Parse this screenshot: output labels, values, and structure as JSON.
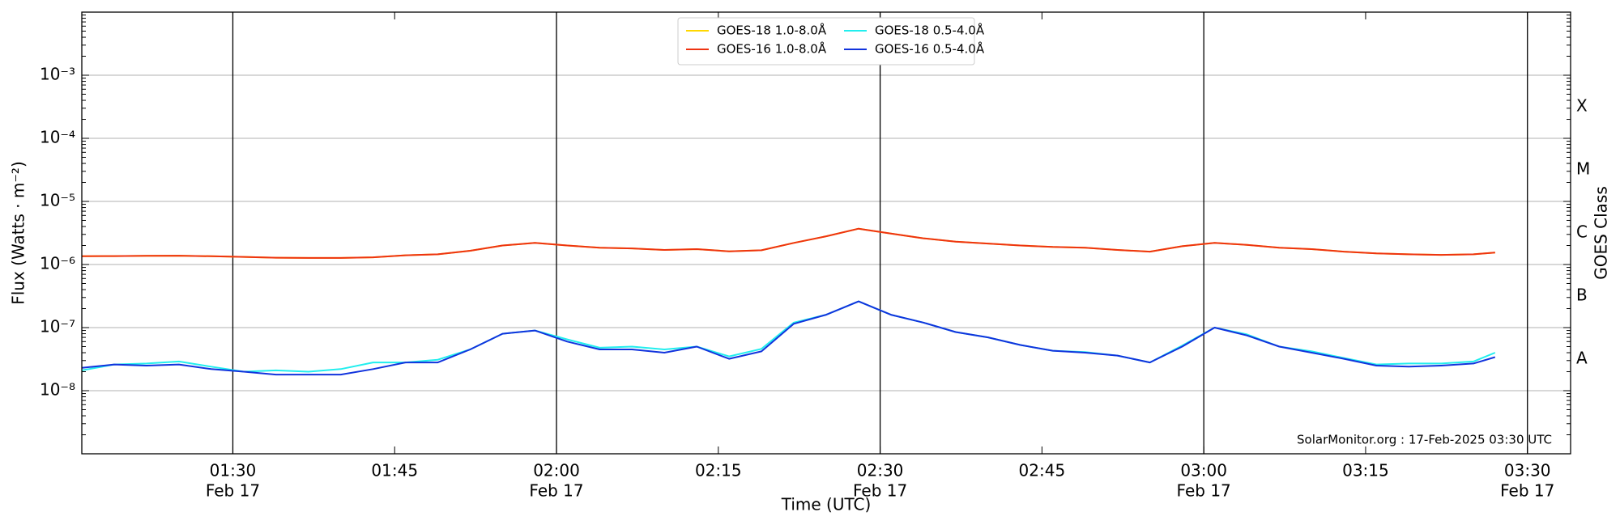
{
  "chart_data": {
    "type": "line",
    "xlabel": "Time (UTC)",
    "ylabel": "Flux (Watts · m⁻²)",
    "y2label": "GOES Class",
    "annotation": "SolarMonitor.org : 17-Feb-2025 03:30 UTC",
    "log_y": true,
    "grid": true,
    "legend": "upper center",
    "x": [
      "01:16",
      "01:19",
      "01:22",
      "01:25",
      "01:28",
      "01:31",
      "01:34",
      "01:37",
      "01:40",
      "01:43",
      "01:46",
      "01:49",
      "01:52",
      "01:55",
      "01:58",
      "02:01",
      "02:04",
      "02:07",
      "02:10",
      "02:13",
      "02:16",
      "02:19",
      "02:22",
      "02:25",
      "02:28",
      "02:31",
      "02:34",
      "02:37",
      "02:40",
      "02:43",
      "02:46",
      "02:49",
      "02:52",
      "02:55",
      "02:58",
      "03:01",
      "03:04",
      "03:07",
      "03:10",
      "03:13",
      "03:16",
      "03:19",
      "03:22",
      "03:25",
      "03:27"
    ],
    "xlim": [
      "01:16",
      "03:34"
    ],
    "xticks": [
      {
        "value": "01:30",
        "label": "01:30",
        "sublabel": "Feb 17"
      },
      {
        "value": "01:45",
        "label": "01:45"
      },
      {
        "value": "02:00",
        "label": "02:00",
        "sublabel": "Feb 17"
      },
      {
        "value": "02:15",
        "label": "02:15"
      },
      {
        "value": "02:30",
        "label": "02:30",
        "sublabel": "Feb 17"
      },
      {
        "value": "02:45",
        "label": "02:45"
      },
      {
        "value": "03:00",
        "label": "03:00",
        "sublabel": "Feb 17"
      },
      {
        "value": "03:15",
        "label": "03:15"
      },
      {
        "value": "03:30",
        "label": "03:30",
        "sublabel": "Feb 17"
      }
    ],
    "ylim": [
      1e-09,
      0.01
    ],
    "yticks": [
      {
        "value": 1e-08,
        "label": "10⁻⁸"
      },
      {
        "value": 1e-07,
        "label": "10⁻⁷"
      },
      {
        "value": 1e-06,
        "label": "10⁻⁶"
      },
      {
        "value": 1e-05,
        "label": "10⁻⁵"
      },
      {
        "value": 0.0001,
        "label": "10⁻⁴"
      },
      {
        "value": 0.001,
        "label": "10⁻³"
      }
    ],
    "y2lim": [
      1e-09,
      0.01
    ],
    "y2ticks": [
      {
        "value": 3.16e-08,
        "label": "A"
      },
      {
        "value": 3.16e-07,
        "label": "B"
      },
      {
        "value": 3.16e-06,
        "label": "C"
      },
      {
        "value": 3.16e-05,
        "label": "M"
      },
      {
        "value": 0.000316,
        "label": "X"
      }
    ],
    "series": [
      {
        "name": "GOES-18 1.0-8.0Å",
        "color": "#ffd700",
        "values": [
          1.35e-06,
          1.36e-06,
          1.37e-06,
          1.38e-06,
          1.35e-06,
          1.32e-06,
          1.28e-06,
          1.27e-06,
          1.27e-06,
          1.3e-06,
          1.4e-06,
          1.45e-06,
          1.65e-06,
          2e-06,
          2.2e-06,
          2e-06,
          1.85e-06,
          1.8e-06,
          1.7e-06,
          1.75e-06,
          1.62e-06,
          1.68e-06,
          2.2e-06,
          2.8e-06,
          3.7e-06,
          3.1e-06,
          2.6e-06,
          2.3e-06,
          2.15e-06,
          2e-06,
          1.9e-06,
          1.85e-06,
          1.7e-06,
          1.6e-06,
          1.95e-06,
          2.2e-06,
          2.05e-06,
          1.85e-06,
          1.75e-06,
          1.6e-06,
          1.5e-06,
          1.45e-06,
          1.42e-06,
          1.45e-06,
          1.55e-06
        ]
      },
      {
        "name": "GOES-16 1.0-8.0Å",
        "color": "#ee3311",
        "values": [
          1.35e-06,
          1.36e-06,
          1.37e-06,
          1.38e-06,
          1.35e-06,
          1.32e-06,
          1.28e-06,
          1.27e-06,
          1.27e-06,
          1.3e-06,
          1.4e-06,
          1.45e-06,
          1.65e-06,
          2e-06,
          2.2e-06,
          2e-06,
          1.85e-06,
          1.8e-06,
          1.7e-06,
          1.75e-06,
          1.62e-06,
          1.68e-06,
          2.2e-06,
          2.8e-06,
          3.7e-06,
          3.1e-06,
          2.6e-06,
          2.3e-06,
          2.15e-06,
          2e-06,
          1.9e-06,
          1.85e-06,
          1.7e-06,
          1.6e-06,
          1.95e-06,
          2.2e-06,
          2.05e-06,
          1.85e-06,
          1.75e-06,
          1.6e-06,
          1.5e-06,
          1.45e-06,
          1.42e-06,
          1.45e-06,
          1.55e-06
        ]
      },
      {
        "name": "GOES-18 0.5-4.0Å",
        "color": "#22eeee",
        "values": [
          2.1e-08,
          2.6e-08,
          2.7e-08,
          2.9e-08,
          2.4e-08,
          2e-08,
          2.1e-08,
          2e-08,
          2.2e-08,
          2.8e-08,
          2.8e-08,
          3.1e-08,
          4.5e-08,
          8e-08,
          9e-08,
          6.5e-08,
          4.8e-08,
          5e-08,
          4.5e-08,
          5e-08,
          3.5e-08,
          4.6e-08,
          1.2e-07,
          1.6e-07,
          2.6e-07,
          1.6e-07,
          1.2e-07,
          8.5e-08,
          7e-08,
          5.3e-08,
          4.3e-08,
          4.1e-08,
          3.6e-08,
          2.8e-08,
          5.2e-08,
          1e-07,
          7.8e-08,
          5e-08,
          4.2e-08,
          3.3e-08,
          2.6e-08,
          2.7e-08,
          2.7e-08,
          2.9e-08,
          4e-08
        ]
      },
      {
        "name": "GOES-16 0.5-4.0Å",
        "color": "#1133dd",
        "values": [
          2.3e-08,
          2.6e-08,
          2.5e-08,
          2.6e-08,
          2.2e-08,
          2e-08,
          1.8e-08,
          1.8e-08,
          1.8e-08,
          2.2e-08,
          2.8e-08,
          2.8e-08,
          4.5e-08,
          8e-08,
          9e-08,
          6e-08,
          4.5e-08,
          4.5e-08,
          4e-08,
          5e-08,
          3.2e-08,
          4.2e-08,
          1.15e-07,
          1.6e-07,
          2.6e-07,
          1.6e-07,
          1.2e-07,
          8.5e-08,
          7e-08,
          5.3e-08,
          4.3e-08,
          4e-08,
          3.6e-08,
          2.8e-08,
          5e-08,
          1e-07,
          7.5e-08,
          5e-08,
          4e-08,
          3.2e-08,
          2.5e-08,
          2.4e-08,
          2.5e-08,
          2.7e-08,
          3.4e-08
        ]
      }
    ]
  }
}
